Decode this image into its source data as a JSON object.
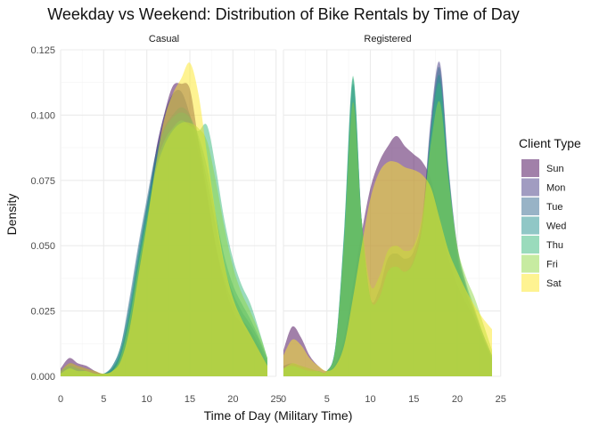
{
  "chart_data": {
    "type": "area",
    "title": "Weekday vs Weekend: Distribution of Bike Rentals by Time of Day",
    "xlabel": "Time of Day (Military Time)",
    "ylabel": "Density",
    "xlim": [
      0,
      24
    ],
    "ylim": [
      0,
      0.125
    ],
    "x_ticks": [
      "0",
      "5",
      "10",
      "15",
      "20",
      "25"
    ],
    "y_ticks": [
      "0.000",
      "0.025",
      "0.050",
      "0.075",
      "0.100",
      "0.125"
    ],
    "grid": true,
    "legend": {
      "title": "Client Type",
      "placement": "right",
      "items": [
        {
          "label": "Sun",
          "color": "#440154"
        },
        {
          "label": "Mon",
          "color": "#443a83"
        },
        {
          "label": "Tue",
          "color": "#31688e"
        },
        {
          "label": "Wed",
          "color": "#21908d"
        },
        {
          "label": "Thu",
          "color": "#35b779"
        },
        {
          "label": "Fri",
          "color": "#8fd744"
        },
        {
          "label": "Sat",
          "color": "#fde725"
        }
      ]
    },
    "panels": [
      {
        "name": "Casual",
        "series": [
          {
            "name": "Sun",
            "x": [
              0,
              1,
              2,
              3,
              4,
              5,
              6,
              7,
              8,
              9,
              10,
              11,
              12,
              13,
              14,
              15,
              16,
              17,
              18,
              19,
              20,
              21,
              22,
              23,
              24
            ],
            "y": [
              0.003,
              0.007,
              0.005,
              0.004,
              0.002,
              0.001,
              0.003,
              0.008,
              0.02,
              0.04,
              0.06,
              0.085,
              0.1,
              0.111,
              0.112,
              0.11,
              0.09,
              0.07,
              0.05,
              0.035,
              0.025,
              0.02,
              0.015,
              0.01,
              0.004
            ]
          },
          {
            "name": "Mon",
            "x": [
              0,
              1,
              2,
              3,
              4,
              5,
              6,
              7,
              8,
              9,
              10,
              11,
              12,
              13,
              14,
              15,
              16,
              17,
              18,
              19,
              20,
              21,
              22,
              23,
              24
            ],
            "y": [
              0.002,
              0.005,
              0.004,
              0.003,
              0.002,
              0.001,
              0.003,
              0.01,
              0.025,
              0.045,
              0.065,
              0.085,
              0.1,
              0.108,
              0.109,
              0.1,
              0.085,
              0.068,
              0.05,
              0.037,
              0.028,
              0.022,
              0.018,
              0.012,
              0.005
            ]
          },
          {
            "name": "Tue",
            "x": [
              0,
              1,
              2,
              3,
              4,
              5,
              6,
              7,
              8,
              9,
              10,
              11,
              12,
              13,
              14,
              15,
              16,
              17,
              18,
              19,
              20,
              21,
              22,
              23,
              24
            ],
            "y": [
              0.002,
              0.004,
              0.003,
              0.002,
              0.001,
              0.001,
              0.004,
              0.012,
              0.03,
              0.05,
              0.068,
              0.085,
              0.095,
              0.1,
              0.103,
              0.1,
              0.09,
              0.075,
              0.058,
              0.042,
              0.032,
              0.025,
              0.02,
              0.014,
              0.006
            ]
          },
          {
            "name": "Wed",
            "x": [
              0,
              1,
              2,
              3,
              4,
              5,
              6,
              7,
              8,
              9,
              10,
              11,
              12,
              13,
              14,
              15,
              16,
              17,
              18,
              19,
              20,
              21,
              22,
              23,
              24
            ],
            "y": [
              0.002,
              0.004,
              0.003,
              0.002,
              0.001,
              0.001,
              0.004,
              0.012,
              0.028,
              0.048,
              0.066,
              0.083,
              0.094,
              0.099,
              0.101,
              0.099,
              0.092,
              0.08,
              0.062,
              0.046,
              0.035,
              0.028,
              0.022,
              0.015,
              0.007
            ]
          },
          {
            "name": "Thu",
            "x": [
              0,
              1,
              2,
              3,
              4,
              5,
              6,
              7,
              8,
              9,
              10,
              11,
              12,
              13,
              14,
              15,
              16,
              17,
              18,
              19,
              20,
              21,
              22,
              23,
              24
            ],
            "y": [
              0.001,
              0.003,
              0.002,
              0.002,
              0.001,
              0.001,
              0.003,
              0.01,
              0.025,
              0.045,
              0.063,
              0.08,
              0.09,
              0.095,
              0.098,
              0.096,
              0.094,
              0.096,
              0.08,
              0.06,
              0.045,
              0.035,
              0.028,
              0.018,
              0.007
            ]
          },
          {
            "name": "Fri",
            "x": [
              0,
              1,
              2,
              3,
              4,
              5,
              6,
              7,
              8,
              9,
              10,
              11,
              12,
              13,
              14,
              15,
              16,
              17,
              18,
              19,
              20,
              21,
              22,
              23,
              24
            ],
            "y": [
              0.001,
              0.003,
              0.002,
              0.002,
              0.001,
              0.001,
              0.002,
              0.008,
              0.022,
              0.042,
              0.06,
              0.078,
              0.088,
              0.094,
              0.097,
              0.097,
              0.095,
              0.09,
              0.075,
              0.057,
              0.042,
              0.032,
              0.025,
              0.017,
              0.007
            ]
          },
          {
            "name": "Sat",
            "x": [
              0,
              1,
              2,
              3,
              4,
              5,
              6,
              7,
              8,
              9,
              10,
              11,
              12,
              13,
              14,
              15,
              16,
              17,
              18,
              19,
              20,
              21,
              22,
              23,
              24
            ],
            "y": [
              0.002,
              0.005,
              0.004,
              0.003,
              0.002,
              0.001,
              0.002,
              0.006,
              0.018,
              0.038,
              0.058,
              0.08,
              0.098,
              0.108,
              0.114,
              0.12,
              0.108,
              0.085,
              0.062,
              0.043,
              0.03,
              0.022,
              0.016,
              0.01,
              0.004
            ]
          }
        ]
      },
      {
        "name": "Registered",
        "series": [
          {
            "name": "Sun",
            "x": [
              0,
              1,
              2,
              3,
              4,
              5,
              6,
              7,
              8,
              9,
              10,
              11,
              12,
              13,
              14,
              15,
              16,
              17,
              18,
              19,
              20,
              21,
              22,
              23,
              24
            ],
            "y": [
              0.01,
              0.019,
              0.015,
              0.008,
              0.004,
              0.002,
              0.005,
              0.015,
              0.035,
              0.055,
              0.072,
              0.082,
              0.088,
              0.092,
              0.088,
              0.085,
              0.082,
              0.075,
              0.06,
              0.045,
              0.035,
              0.028,
              0.022,
              0.014,
              0.006
            ]
          },
          {
            "name": "Mon",
            "x": [
              0,
              1,
              2,
              3,
              4,
              5,
              6,
              7,
              8,
              9,
              10,
              11,
              12,
              13,
              14,
              15,
              16,
              17,
              18,
              19,
              20,
              21,
              22,
              23,
              24
            ],
            "y": [
              0.004,
              0.005,
              0.004,
              0.003,
              0.002,
              0.002,
              0.01,
              0.05,
              0.105,
              0.06,
              0.03,
              0.033,
              0.045,
              0.047,
              0.045,
              0.048,
              0.062,
              0.1,
              0.12,
              0.08,
              0.05,
              0.035,
              0.025,
              0.016,
              0.008
            ]
          },
          {
            "name": "Tue",
            "x": [
              0,
              1,
              2,
              3,
              4,
              5,
              6,
              7,
              8,
              9,
              10,
              11,
              12,
              13,
              14,
              15,
              16,
              17,
              18,
              19,
              20,
              21,
              22,
              23,
              24
            ],
            "y": [
              0.003,
              0.004,
              0.003,
              0.002,
              0.002,
              0.002,
              0.012,
              0.055,
              0.112,
              0.06,
              0.03,
              0.03,
              0.04,
              0.042,
              0.04,
              0.045,
              0.06,
              0.098,
              0.118,
              0.078,
              0.046,
              0.032,
              0.022,
              0.014,
              0.007
            ]
          },
          {
            "name": "Wed",
            "x": [
              0,
              1,
              2,
              3,
              4,
              5,
              6,
              7,
              8,
              9,
              10,
              11,
              12,
              13,
              14,
              15,
              16,
              17,
              18,
              19,
              20,
              21,
              22,
              23,
              24
            ],
            "y": [
              0.003,
              0.004,
              0.003,
              0.002,
              0.002,
              0.002,
              0.012,
              0.056,
              0.114,
              0.06,
              0.03,
              0.03,
              0.04,
              0.042,
              0.04,
              0.044,
              0.058,
              0.096,
              0.115,
              0.078,
              0.048,
              0.034,
              0.024,
              0.015,
              0.007
            ]
          },
          {
            "name": "Thu",
            "x": [
              0,
              1,
              2,
              3,
              4,
              5,
              6,
              7,
              8,
              9,
              10,
              11,
              12,
              13,
              14,
              15,
              16,
              17,
              18,
              19,
              20,
              21,
              22,
              23,
              24
            ],
            "y": [
              0.003,
              0.004,
              0.003,
              0.002,
              0.002,
              0.002,
              0.012,
              0.057,
              0.115,
              0.06,
              0.03,
              0.03,
              0.04,
              0.042,
              0.04,
              0.044,
              0.058,
              0.094,
              0.112,
              0.078,
              0.05,
              0.036,
              0.026,
              0.016,
              0.008
            ]
          },
          {
            "name": "Fri",
            "x": [
              0,
              1,
              2,
              3,
              4,
              5,
              6,
              7,
              8,
              9,
              10,
              11,
              12,
              13,
              14,
              15,
              16,
              17,
              18,
              19,
              20,
              21,
              22,
              23,
              24
            ],
            "y": [
              0.003,
              0.005,
              0.004,
              0.003,
              0.002,
              0.002,
              0.011,
              0.052,
              0.105,
              0.06,
              0.035,
              0.038,
              0.048,
              0.05,
              0.048,
              0.05,
              0.062,
              0.09,
              0.105,
              0.075,
              0.05,
              0.038,
              0.03,
              0.02,
              0.01
            ]
          },
          {
            "name": "Sat",
            "x": [
              0,
              1,
              2,
              3,
              4,
              5,
              6,
              7,
              8,
              9,
              10,
              11,
              12,
              13,
              14,
              15,
              16,
              17,
              18,
              19,
              20,
              21,
              22,
              23,
              24
            ],
            "y": [
              0.008,
              0.014,
              0.012,
              0.007,
              0.004,
              0.002,
              0.004,
              0.012,
              0.03,
              0.05,
              0.068,
              0.078,
              0.082,
              0.082,
              0.08,
              0.079,
              0.077,
              0.072,
              0.06,
              0.048,
              0.04,
              0.033,
              0.027,
              0.022,
              0.018
            ]
          }
        ]
      }
    ]
  }
}
